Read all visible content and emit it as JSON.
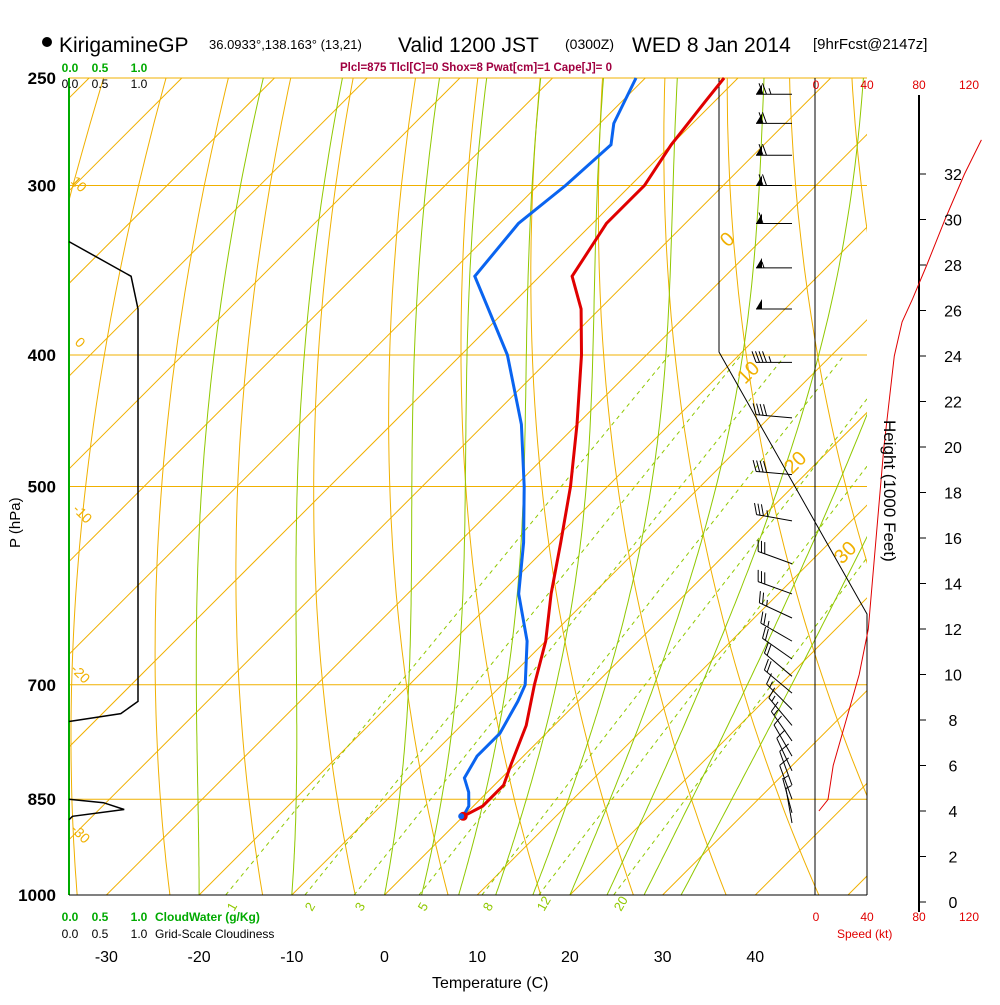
{
  "header": {
    "station": "KirigamineGP",
    "location": "36.0933°,138.163° (13,21)",
    "valid": "Valid 1200 JST",
    "zulu": "(0300Z)",
    "date": "WED 8 Jan 2014",
    "forecast": "[9hrFcst@2147z]"
  },
  "indices_text": "Plcl=875 Tlcl[C]=0 Shox=8 Pwat[cm]=1 Cape[J]= 0",
  "colors": {
    "temperature": "#e00000",
    "dewpoint": "#0a64f0",
    "isotherm_isobar": "#f0b000",
    "dry_adiabat": "#f0b000",
    "moist_adiabat": "#90c800",
    "mixing_ratio": "#90c800",
    "cloud_water": "#00aa00",
    "speed": "#e00000",
    "indices": "#a00040"
  },
  "chart_data": {
    "type": "skew-t",
    "ylabel": "P (hPa)",
    "xlabel": "Temperature (C)",
    "right_axis_label": "Height (1000 Feet)",
    "pressure_ticks": [
      250,
      300,
      400,
      500,
      700,
      850,
      1000
    ],
    "temperature_ticks": [
      -30,
      -20,
      -10,
      0,
      10,
      20,
      30,
      40
    ],
    "height_ticks": [
      0,
      2,
      4,
      6,
      8,
      10,
      12,
      14,
      16,
      18,
      20,
      22,
      24,
      26,
      28,
      30,
      32
    ],
    "dry_adiabat_labels": [
      "10",
      "0",
      "-10",
      "-20",
      "-30"
    ],
    "isotherm_labels": [
      "0",
      "10",
      "20",
      "30"
    ],
    "mixing_ratio_labels": [
      "1",
      "2",
      "3",
      "5",
      "8",
      "12",
      "20"
    ],
    "cloud_water_ticks_top": [
      "0.0",
      "0.5",
      "1.0"
    ],
    "cloudiness_ticks_top": [
      "0.0",
      "0.5",
      "1.0"
    ],
    "cloud_water_ticks_bottom": [
      "0.0",
      "0.5",
      "1.0"
    ],
    "cloudiness_ticks_bottom": [
      "0.0",
      "0.5",
      "1.0"
    ],
    "cloud_water_label": "CloudWater (g/Kg)",
    "cloudiness_label": "Grid-Scale Cloudiness",
    "speed_ticks_top": [
      "0",
      "40",
      "80",
      "120"
    ],
    "speed_ticks_bottom": [
      "0",
      "40",
      "80",
      "120"
    ],
    "speed_label": "Speed (kt)",
    "temperature_profile": [
      {
        "p": 875,
        "t": 0.0
      },
      {
        "p": 860,
        "t": 1.0
      },
      {
        "p": 830,
        "t": 1.0
      },
      {
        "p": 800,
        "t": -0.5
      },
      {
        "p": 750,
        "t": -3.0
      },
      {
        "p": 700,
        "t": -6.5
      },
      {
        "p": 650,
        "t": -10.0
      },
      {
        "p": 600,
        "t": -14.5
      },
      {
        "p": 550,
        "t": -19.0
      },
      {
        "p": 500,
        "t": -24.0
      },
      {
        "p": 450,
        "t": -30.0
      },
      {
        "p": 400,
        "t": -37.0
      },
      {
        "p": 370,
        "t": -42.0
      },
      {
        "p": 350,
        "t": -46.5
      },
      {
        "p": 320,
        "t": -48.5
      },
      {
        "p": 300,
        "t": -48.5
      },
      {
        "p": 280,
        "t": -50.0
      },
      {
        "p": 260,
        "t": -51.0
      },
      {
        "p": 250,
        "t": -51.5
      }
    ],
    "dewpoint_profile": [
      {
        "p": 875,
        "td": 0.0
      },
      {
        "p": 860,
        "td": -0.5
      },
      {
        "p": 840,
        "td": -2.0
      },
      {
        "p": 820,
        "td": -4.0
      },
      {
        "p": 790,
        "td": -5.0
      },
      {
        "p": 760,
        "td": -5.0
      },
      {
        "p": 720,
        "td": -6.5
      },
      {
        "p": 700,
        "td": -7.5
      },
      {
        "p": 650,
        "td": -12.0
      },
      {
        "p": 600,
        "td": -18.0
      },
      {
        "p": 550,
        "td": -23.0
      },
      {
        "p": 500,
        "td": -29.0
      },
      {
        "p": 450,
        "td": -36.0
      },
      {
        "p": 400,
        "td": -45.0
      },
      {
        "p": 370,
        "td": -52.0
      },
      {
        "p": 350,
        "td": -57.0
      },
      {
        "p": 320,
        "td": -58.0
      },
      {
        "p": 300,
        "td": -57.0
      },
      {
        "p": 280,
        "td": -56.5
      },
      {
        "p": 270,
        "td": -58.5
      },
      {
        "p": 250,
        "td": -61.0
      }
    ],
    "wind_speed_profile_kt": [
      {
        "h": 4.0,
        "kt": 3
      },
      {
        "h": 4.5,
        "kt": 10
      },
      {
        "h": 6.0,
        "kt": 14
      },
      {
        "h": 8.0,
        "kt": 24
      },
      {
        "h": 10.0,
        "kt": 34
      },
      {
        "h": 12.0,
        "kt": 41
      },
      {
        "h": 14.0,
        "kt": 44
      },
      {
        "h": 16.0,
        "kt": 47
      },
      {
        "h": 18.0,
        "kt": 50
      },
      {
        "h": 20.0,
        "kt": 53
      },
      {
        "h": 22.0,
        "kt": 57
      },
      {
        "h": 24.0,
        "kt": 61
      },
      {
        "h": 25.5,
        "kt": 67
      },
      {
        "h": 26.5,
        "kt": 75
      },
      {
        "h": 28.0,
        "kt": 86
      },
      {
        "h": 30.0,
        "kt": 100
      },
      {
        "h": 32.0,
        "kt": 115
      },
      {
        "h": 33.5,
        "kt": 128
      }
    ],
    "cloudiness_profile": [
      {
        "p": 330,
        "c": 0.0
      },
      {
        "p": 350,
        "c": 0.9
      },
      {
        "p": 370,
        "c": 1.0
      },
      {
        "p": 720,
        "c": 1.0
      },
      {
        "p": 735,
        "c": 0.75
      },
      {
        "p": 745,
        "c": 0.0
      }
    ],
    "cloud_water_profile": [
      {
        "p": 850,
        "q": 0.0
      },
      {
        "p": 855,
        "q": 0.5
      },
      {
        "p": 865,
        "q": 0.8
      },
      {
        "p": 875,
        "q": 0.05
      },
      {
        "p": 880,
        "q": 0.0
      }
    ],
    "wind_barbs": [
      {
        "p": 257,
        "dir": 270,
        "kt": 75
      },
      {
        "p": 270,
        "dir": 270,
        "kt": 70
      },
      {
        "p": 285,
        "dir": 270,
        "kt": 70
      },
      {
        "p": 300,
        "dir": 270,
        "kt": 70
      },
      {
        "p": 320,
        "dir": 270,
        "kt": 60
      },
      {
        "p": 345,
        "dir": 270,
        "kt": 55
      },
      {
        "p": 370,
        "dir": 270,
        "kt": 50
      },
      {
        "p": 405,
        "dir": 270,
        "kt": 45
      },
      {
        "p": 445,
        "dir": 275,
        "kt": 40
      },
      {
        "p": 490,
        "dir": 275,
        "kt": 40
      },
      {
        "p": 530,
        "dir": 280,
        "kt": 35
      },
      {
        "p": 570,
        "dir": 290,
        "kt": 30
      },
      {
        "p": 600,
        "dir": 290,
        "kt": 30
      },
      {
        "p": 625,
        "dir": 295,
        "kt": 25
      },
      {
        "p": 650,
        "dir": 300,
        "kt": 25
      },
      {
        "p": 670,
        "dir": 305,
        "kt": 20
      },
      {
        "p": 690,
        "dir": 310,
        "kt": 20
      },
      {
        "p": 710,
        "dir": 310,
        "kt": 20
      },
      {
        "p": 730,
        "dir": 315,
        "kt": 15
      },
      {
        "p": 750,
        "dir": 320,
        "kt": 15
      },
      {
        "p": 770,
        "dir": 325,
        "kt": 15
      },
      {
        "p": 790,
        "dir": 330,
        "kt": 10
      },
      {
        "p": 810,
        "dir": 335,
        "kt": 10
      },
      {
        "p": 830,
        "dir": 340,
        "kt": 10
      },
      {
        "p": 850,
        "dir": 340,
        "kt": 10
      },
      {
        "p": 870,
        "dir": 345,
        "kt": 5
      },
      {
        "p": 885,
        "dir": 350,
        "kt": 5
      }
    ]
  }
}
